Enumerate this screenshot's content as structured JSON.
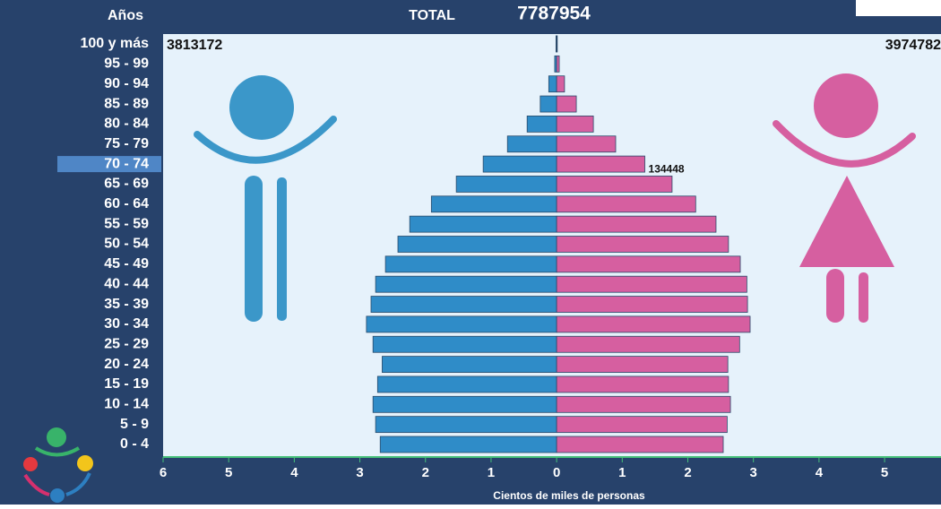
{
  "chart_data": {
    "type": "pyramid",
    "header": "Años",
    "total_label": "TOTAL",
    "total": 7787954,
    "left_total": 3813172,
    "right_total": 3974782,
    "xlabel": "Cientos de miles de  personas",
    "categories": [
      "100 y más",
      "95 - 99",
      "90 - 94",
      "85 - 89",
      "80 - 84",
      "75 - 79",
      "70 - 74",
      "65 - 69",
      "60 - 64",
      "55 - 59",
      "50 - 54",
      "45 - 49",
      "40 - 44",
      "35 - 39",
      "30 - 34",
      "25 - 29",
      "20 - 24",
      "15 - 19",
      "10 - 14",
      "5 - 9",
      "0 - 4"
    ],
    "selected": 6,
    "series": [
      {
        "side": "left",
        "color": "#2f8cc8",
        "values": [
          0.01,
          0.03,
          0.12,
          0.25,
          0.45,
          0.75,
          1.12,
          1.53,
          1.91,
          2.24,
          2.42,
          2.61,
          2.76,
          2.83,
          2.9,
          2.8,
          2.66,
          2.73,
          2.8,
          2.76,
          2.69
        ]
      },
      {
        "side": "right",
        "color": "#d65fa0",
        "values": [
          0.01,
          0.04,
          0.12,
          0.3,
          0.56,
          0.9,
          1.34448,
          1.76,
          2.12,
          2.43,
          2.62,
          2.8,
          2.9,
          2.91,
          2.95,
          2.79,
          2.61,
          2.62,
          2.65,
          2.6,
          2.54
        ],
        "value_labels": [
          null,
          null,
          null,
          null,
          null,
          null,
          "134448",
          null,
          null,
          null,
          null,
          null,
          null,
          null,
          null,
          null,
          null,
          null,
          null,
          null,
          null
        ]
      }
    ],
    "xlim": [
      -6,
      5.86
    ],
    "xticks": [
      {
        "value": -6,
        "label": "6"
      },
      {
        "value": -5,
        "label": "5"
      },
      {
        "value": -4,
        "label": "4"
      },
      {
        "value": -3,
        "label": "3"
      },
      {
        "value": -2,
        "label": "2"
      },
      {
        "value": -1,
        "label": "1"
      },
      0,
      1,
      2,
      3,
      4,
      5
    ]
  }
}
